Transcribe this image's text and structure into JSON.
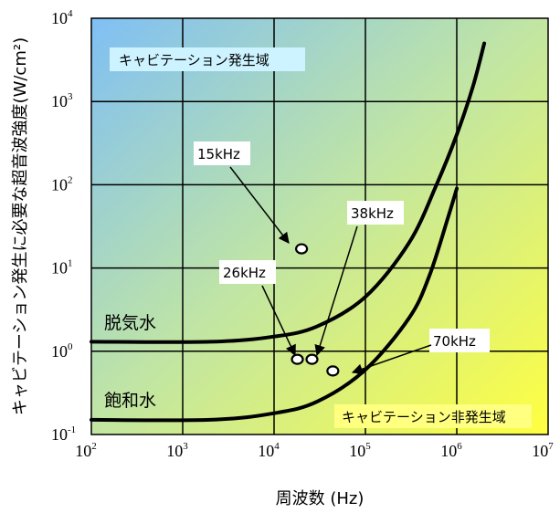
{
  "chart_data": {
    "type": "line",
    "title": "",
    "xlabel": "周波数 (Hz)",
    "ylabel": "キャビテーション発生に必要な超音波強度(W/cm²)",
    "x_scale": "log",
    "y_scale": "log",
    "xlim": [
      100,
      10000000
    ],
    "ylim": [
      0.1,
      10000
    ],
    "grid": true,
    "x_ticks": [
      {
        "base": "10",
        "exp": "2",
        "value": 100
      },
      {
        "base": "10",
        "exp": "3",
        "value": 1000
      },
      {
        "base": "10",
        "exp": "4",
        "value": 10000
      },
      {
        "base": "10",
        "exp": "5",
        "value": 100000
      },
      {
        "base": "10",
        "exp": "6",
        "value": 1000000
      },
      {
        "base": "10",
        "exp": "7",
        "value": 10000000
      }
    ],
    "y_ticks": [
      {
        "base": "10",
        "exp": "-1",
        "value": 0.1
      },
      {
        "base": "10",
        "exp": "0",
        "value": 1
      },
      {
        "base": "10",
        "exp": "1",
        "value": 10
      },
      {
        "base": "10",
        "exp": "2",
        "value": 100
      },
      {
        "base": "10",
        "exp": "3",
        "value": 1000
      },
      {
        "base": "10",
        "exp": "4",
        "value": 10000
      }
    ],
    "series": [
      {
        "name": "脱気水",
        "color": "#000000",
        "x": [
          100,
          2000,
          10000,
          30000,
          100000,
          300000,
          600000,
          1000000,
          1500000,
          2000000
        ],
        "y": [
          1.3,
          1.3,
          1.5,
          2.0,
          4.5,
          20,
          100,
          400,
          1500,
          5000
        ]
      },
      {
        "name": "飽和水",
        "color": "#000000",
        "x": [
          100,
          2000,
          10000,
          30000,
          100000,
          300000,
          500000,
          800000,
          1000000
        ],
        "y": [
          0.15,
          0.15,
          0.18,
          0.25,
          0.6,
          2.5,
          8,
          40,
          90
        ]
      }
    ],
    "points": [
      {
        "label": "15kHz",
        "x": 20000,
        "y": 17
      },
      {
        "label": "26kHz",
        "x": 18000,
        "y": 0.8
      },
      {
        "label": "38kHz",
        "x": 26000,
        "y": 0.8
      },
      {
        "label": "70kHz",
        "x": 44000,
        "y": 0.58
      }
    ],
    "annotations": [
      {
        "label": "15kHz",
        "point_index": 0
      },
      {
        "label": "26kHz",
        "point_index": 1
      },
      {
        "label": "38kHz",
        "point_index": 2
      },
      {
        "label": "70kHz",
        "point_index": 3
      }
    ],
    "region_labels": {
      "upper": "キャビテーション発生域",
      "lower": "キャビテーション非発生域"
    },
    "colors": {
      "upper_left": "#7fbff5",
      "lower_right": "#ffff40",
      "upper_label_bg": "#ccf3ff",
      "lower_label_bg": "#ffff80"
    }
  }
}
